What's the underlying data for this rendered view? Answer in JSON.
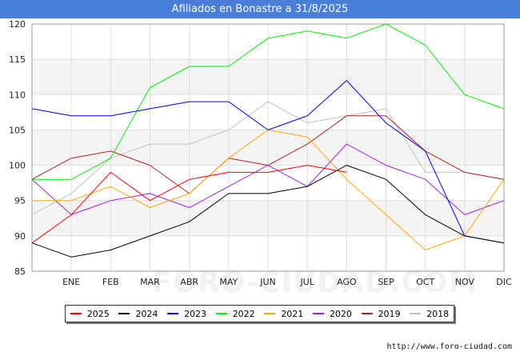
{
  "page": {
    "title": "Afiliados en Bonastre a 31/8/2025",
    "watermark": "FORO-CIUDAD.COM",
    "credit": "http://www.foro-ciudad.com"
  },
  "chart_data": {
    "type": "line",
    "title": "Afiliados en Bonastre a 31/8/2025",
    "categories": [
      "",
      "ENE",
      "FEB",
      "MAR",
      "ABR",
      "MAY",
      "JUN",
      "JUL",
      "AGO",
      "SEP",
      "OCT",
      "NOV",
      "DIC"
    ],
    "ylim": [
      85,
      120
    ],
    "yticks": [
      85,
      90,
      95,
      100,
      105,
      110,
      115,
      120
    ],
    "grid": true,
    "legend_position": "bottom",
    "series": [
      {
        "name": "2025",
        "color": "#ff0000",
        "values": [
          89,
          93,
          99,
          95,
          98,
          99,
          99,
          100,
          99,
          null,
          null,
          null,
          null
        ]
      },
      {
        "name": "2024",
        "color": "#000000",
        "values": [
          89,
          87,
          88,
          90,
          92,
          96,
          96,
          97,
          100,
          98,
          93,
          90,
          89
        ]
      },
      {
        "name": "2023",
        "color": "#0000ff",
        "values": [
          108,
          107,
          107,
          108,
          109,
          109,
          105,
          107,
          112,
          106,
          102,
          90,
          89
        ]
      },
      {
        "name": "2022",
        "color": "#00ee00",
        "values": [
          98,
          98,
          101,
          111,
          114,
          114,
          118,
          119,
          118,
          120,
          117,
          110,
          108
        ]
      },
      {
        "name": "2021",
        "color": "#ffa500",
        "values": [
          95,
          95,
          97,
          94,
          96,
          101,
          105,
          104,
          98,
          93,
          88,
          90,
          98
        ]
      },
      {
        "name": "2020",
        "color": "#a020f0",
        "values": [
          98,
          93,
          95,
          96,
          94,
          97,
          100,
          97,
          103,
          100,
          98,
          93,
          95
        ]
      },
      {
        "name": "2019",
        "color": "#b22222",
        "values": [
          98,
          101,
          102,
          100,
          96,
          101,
          100,
          103,
          107,
          107,
          102,
          99,
          98
        ]
      },
      {
        "name": "2018",
        "color": "#c0c0c0",
        "values": [
          93,
          96,
          101,
          103,
          103,
          105,
          109,
          106,
          107,
          108,
          99,
          99,
          98
        ]
      }
    ]
  }
}
